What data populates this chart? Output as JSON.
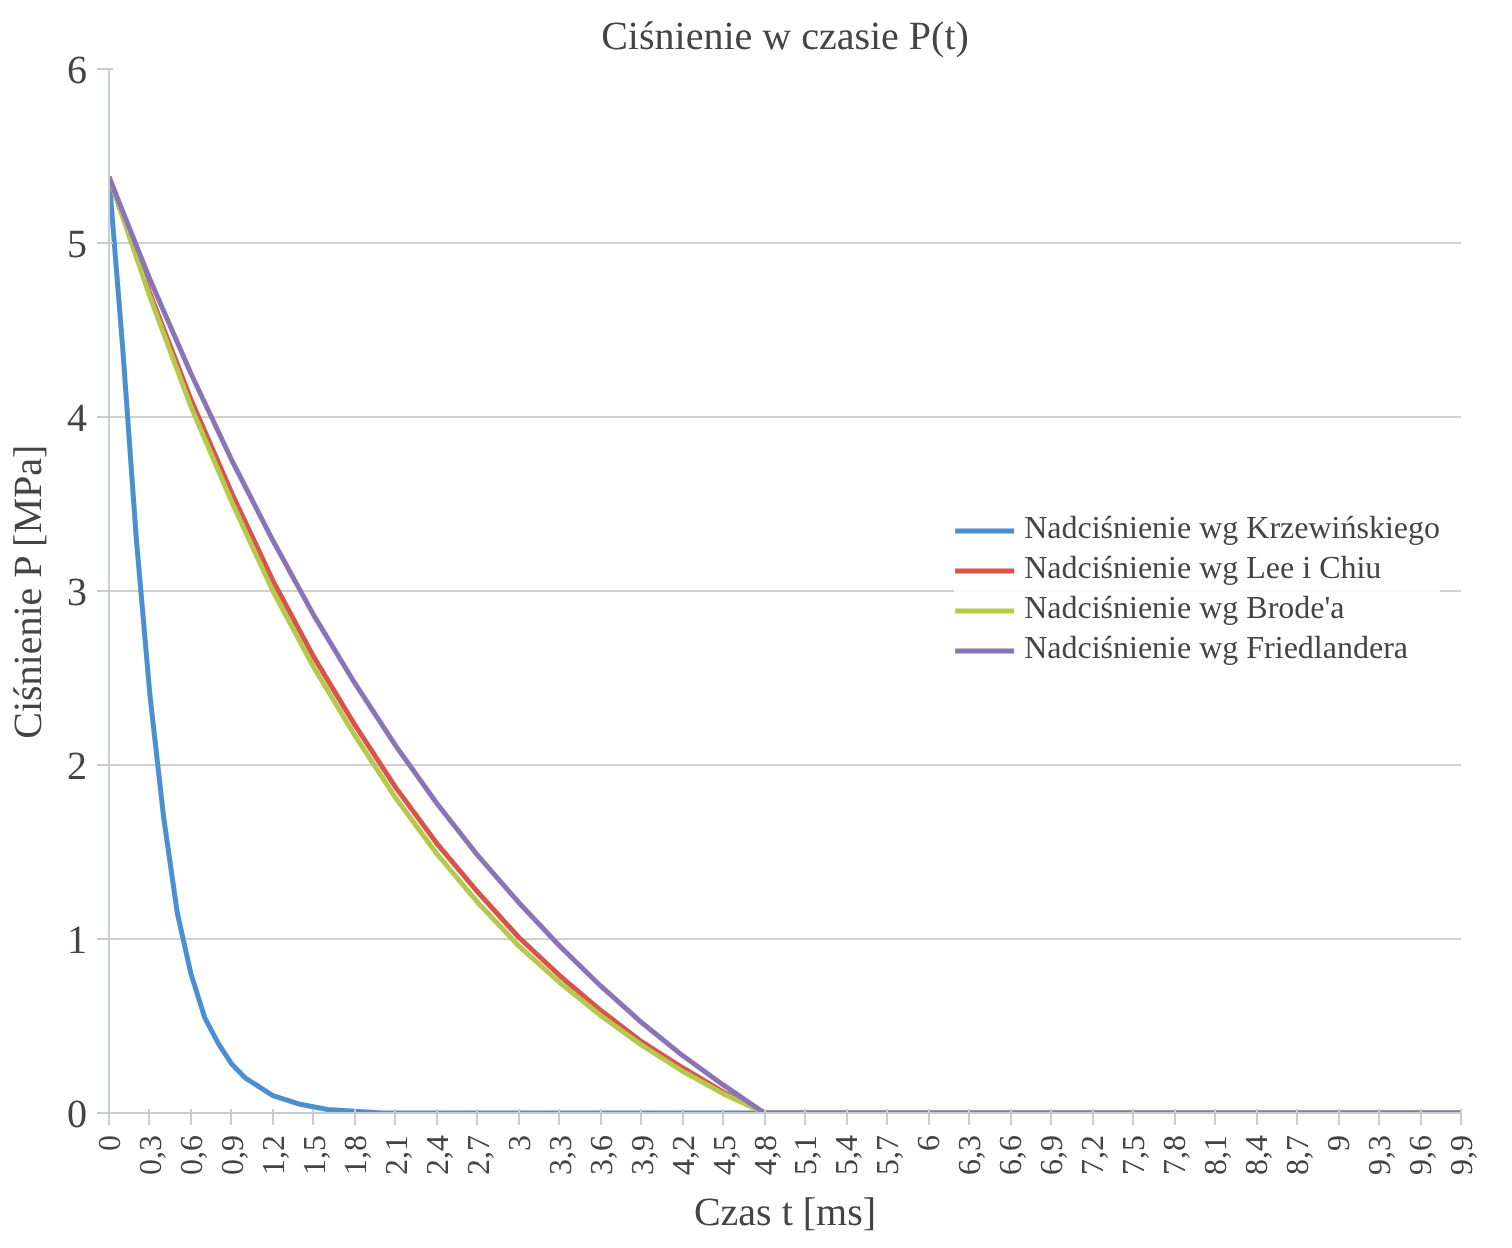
{
  "chart_data": {
    "type": "line",
    "title": "Ciśnienie w czasie P(t)",
    "xlabel": "Czas t [ms]",
    "ylabel": "Ciśnienie P [MPa]",
    "xlim": [
      0,
      9.9
    ],
    "ylim": [
      0,
      6
    ],
    "yticks": [
      0,
      1,
      2,
      3,
      4,
      5,
      6
    ],
    "xticks": [
      0,
      {
        "value": 0.3,
        "label": "0,3"
      },
      {
        "value": 0.6,
        "label": "0,6"
      },
      {
        "value": 0.9,
        "label": "0,9"
      },
      {
        "value": 1.2,
        "label": "1,2"
      },
      {
        "value": 1.5,
        "label": "1,5"
      },
      {
        "value": 1.8,
        "label": "1,8"
      },
      {
        "value": 2.1,
        "label": "2,1"
      },
      {
        "value": 2.4,
        "label": "2,4"
      },
      {
        "value": 2.7,
        "label": "2,7"
      },
      3,
      {
        "value": 3.3,
        "label": "3,3"
      },
      {
        "value": 3.6,
        "label": "3,6"
      },
      {
        "value": 3.9,
        "label": "3,9"
      },
      {
        "value": 4.2,
        "label": "4,2"
      },
      {
        "value": 4.5,
        "label": "4,5"
      },
      {
        "value": 4.8,
        "label": "4,8"
      },
      {
        "value": 5.1,
        "label": "5,1"
      },
      {
        "value": 5.4,
        "label": "5,4"
      },
      {
        "value": 5.7,
        "label": "5,7"
      },
      6,
      {
        "value": 6.3,
        "label": "6,3"
      },
      {
        "value": 6.6,
        "label": "6,6"
      },
      {
        "value": 6.9,
        "label": "6,9"
      },
      {
        "value": 7.2,
        "label": "7,2"
      },
      {
        "value": 7.5,
        "label": "7,5"
      },
      {
        "value": 7.8,
        "label": "7,8"
      },
      {
        "value": 8.1,
        "label": "8,1"
      },
      {
        "value": 8.4,
        "label": "8,4"
      },
      {
        "value": 8.7,
        "label": "8,7"
      },
      9,
      {
        "value": 9.3,
        "label": "9,3"
      },
      {
        "value": 9.6,
        "label": "9,6"
      },
      {
        "value": 9.9,
        "label": "9,9"
      }
    ],
    "grid": "y",
    "legend": "right",
    "line_style": "solid",
    "series": [
      {
        "name": "Nadciśnienie wg Krzewińskiego",
        "color": "#4a8fd0",
        "x": [
          0,
          0.1,
          0.2,
          0.3,
          0.4,
          0.5,
          0.6,
          0.7,
          0.8,
          0.9,
          1.0,
          1.2,
          1.4,
          1.6,
          1.8,
          2.0,
          9.9
        ],
        "values": [
          5.38,
          4.4,
          3.3,
          2.4,
          1.7,
          1.15,
          0.8,
          0.55,
          0.4,
          0.28,
          0.2,
          0.1,
          0.05,
          0.02,
          0.01,
          0,
          0
        ]
      },
      {
        "name": "Nadciśnienie wg Lee i Chiu",
        "color": "#d9534a",
        "x": [
          0,
          0.3,
          0.6,
          0.9,
          1.2,
          1.5,
          1.8,
          2.1,
          2.4,
          2.7,
          3.0,
          3.3,
          3.6,
          3.9,
          4.2,
          4.5,
          4.8,
          9.9
        ],
        "values": [
          5.38,
          4.71,
          4.1,
          3.56,
          3.06,
          2.62,
          2.23,
          1.87,
          1.55,
          1.27,
          1.01,
          0.79,
          0.59,
          0.41,
          0.26,
          0.12,
          0,
          0
        ]
      },
      {
        "name": "Nadciśnienie wg Brode'a",
        "color": "#b5c94c",
        "x": [
          0,
          0.3,
          0.6,
          0.9,
          1.2,
          1.5,
          1.8,
          2.1,
          2.4,
          2.7,
          3.0,
          3.3,
          3.6,
          3.9,
          4.2,
          4.5,
          4.8,
          9.9
        ],
        "values": [
          5.38,
          4.69,
          4.06,
          3.51,
          3.0,
          2.56,
          2.17,
          1.81,
          1.49,
          1.21,
          0.96,
          0.75,
          0.56,
          0.39,
          0.24,
          0.11,
          0,
          0
        ]
      },
      {
        "name": "Nadciśnienie wg Friedlandera",
        "color": "#8a74b8",
        "x": [
          0,
          0.3,
          0.6,
          0.9,
          1.2,
          1.5,
          1.8,
          2.1,
          2.4,
          2.7,
          3.0,
          3.3,
          3.6,
          3.9,
          4.2,
          4.5,
          4.8,
          9.9
        ],
        "values": [
          5.38,
          4.79,
          4.25,
          3.75,
          3.29,
          2.86,
          2.47,
          2.11,
          1.78,
          1.48,
          1.21,
          0.96,
          0.73,
          0.52,
          0.33,
          0.16,
          0,
          0
        ]
      }
    ]
  }
}
